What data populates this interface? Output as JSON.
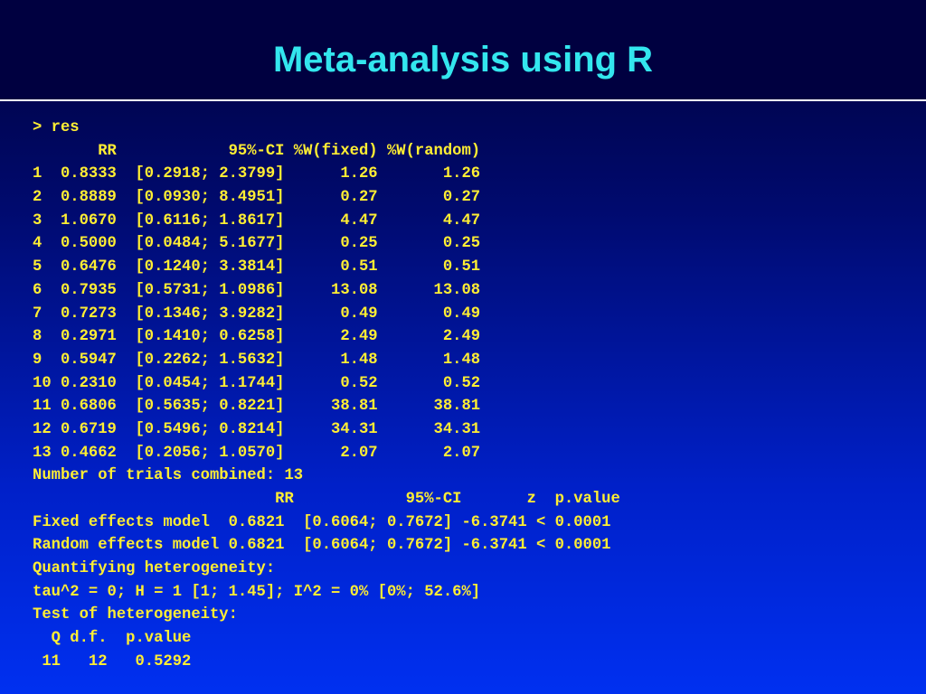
{
  "slide": {
    "title": "Meta-analysis using R"
  },
  "console": {
    "lines": [
      "> res",
      "       RR            95%-CI %W(fixed) %W(random)",
      "1  0.8333  [0.2918; 2.3799]      1.26       1.26",
      "2  0.8889  [0.0930; 8.4951]      0.27       0.27",
      "3  1.0670  [0.6116; 1.8617]      4.47       4.47",
      "4  0.5000  [0.0484; 5.1677]      0.25       0.25",
      "5  0.6476  [0.1240; 3.3814]      0.51       0.51",
      "6  0.7935  [0.5731; 1.0986]     13.08      13.08",
      "7  0.7273  [0.1346; 3.9282]      0.49       0.49",
      "8  0.2971  [0.1410; 0.6258]      2.49       2.49",
      "9  0.5947  [0.2262; 1.5632]      1.48       1.48",
      "10 0.2310  [0.0454; 1.1744]      0.52       0.52",
      "11 0.6806  [0.5635; 0.8221]     38.81      38.81",
      "12 0.6719  [0.5496; 0.8214]     34.31      34.31",
      "13 0.4662  [0.2056; 1.0570]      2.07       2.07",
      "Number of trials combined: 13",
      "                          RR            95%-CI       z  p.value",
      "Fixed effects model  0.6821  [0.6064; 0.7672] -6.3741 < 0.0001",
      "Random effects model 0.6821  [0.6064; 0.7672] -6.3741 < 0.0001",
      "Quantifying heterogeneity:",
      "tau^2 = 0; H = 1 [1; 1.45]; I^2 = 0% [0%; 52.6%]",
      "Test of heterogeneity:",
      "  Q d.f.  p.value",
      " 11   12   0.5292"
    ]
  },
  "colors": {
    "title_text": "#33e6ee",
    "console_text": "#ffee33",
    "title_band": "#000040",
    "rule": "#ffffff"
  }
}
